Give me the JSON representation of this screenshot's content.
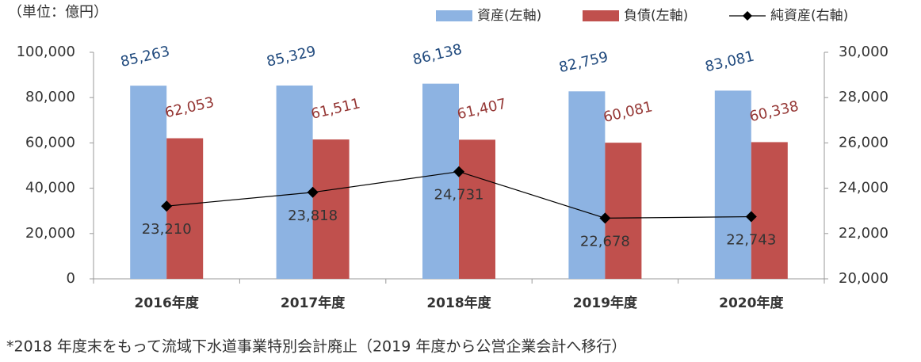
{
  "chart_data": {
    "type": "bar",
    "unit_label": "（単位：億円）",
    "note": "*2018 年度末をもって流域下水道事業特別会計廃止（2019 年度から公営企業会計へ移行）",
    "categories": [
      "2016年度",
      "2017年度",
      "2018年度",
      "2019年度",
      "2020年度"
    ],
    "series": [
      {
        "name": "資産(左軸)",
        "type": "bar",
        "color": "#8db3e2",
        "label_color": "#1f497d",
        "values": [
          85263,
          85329,
          86138,
          82759,
          83081
        ],
        "value_labels": [
          "85,263",
          "85,329",
          "86,138",
          "82,759",
          "83,081"
        ]
      },
      {
        "name": "負債(左軸)",
        "type": "bar",
        "color": "#c0504d",
        "label_color": "#953735",
        "values": [
          62053,
          61511,
          61407,
          60081,
          60338
        ],
        "value_labels": [
          "62,053",
          "61,511",
          "61,407",
          "60,081",
          "60,338"
        ]
      },
      {
        "name": "純資産(右軸)",
        "type": "line",
        "axis": "y2",
        "color": "#000000",
        "label_color": "#333333",
        "values": [
          23210,
          23818,
          24731,
          22678,
          22743
        ],
        "value_labels": [
          "23,210",
          "23,818",
          "24,731",
          "22,678",
          "22,743"
        ]
      }
    ],
    "ylim": [
      0,
      100000
    ],
    "yticks": [
      0,
      {
        "value": 20000,
        "label": "20,000"
      },
      {
        "value": 40000,
        "label": "40,000"
      },
      {
        "value": 60000,
        "label": "60,000"
      },
      {
        "value": 80000,
        "label": "80,000"
      },
      {
        "value": 100000,
        "label": "100,000"
      }
    ],
    "y2lim": [
      20000,
      30000
    ],
    "y2ticks": [
      {
        "value": 20000,
        "label": "20,000"
      },
      {
        "value": 22000,
        "label": "22,000"
      },
      {
        "value": 24000,
        "label": "24,000"
      },
      {
        "value": 26000,
        "label": "26,000"
      },
      {
        "value": 28000,
        "label": "28,000"
      },
      {
        "value": 30000,
        "label": "30,000"
      }
    ],
    "grid": false,
    "legend": "top-right"
  }
}
